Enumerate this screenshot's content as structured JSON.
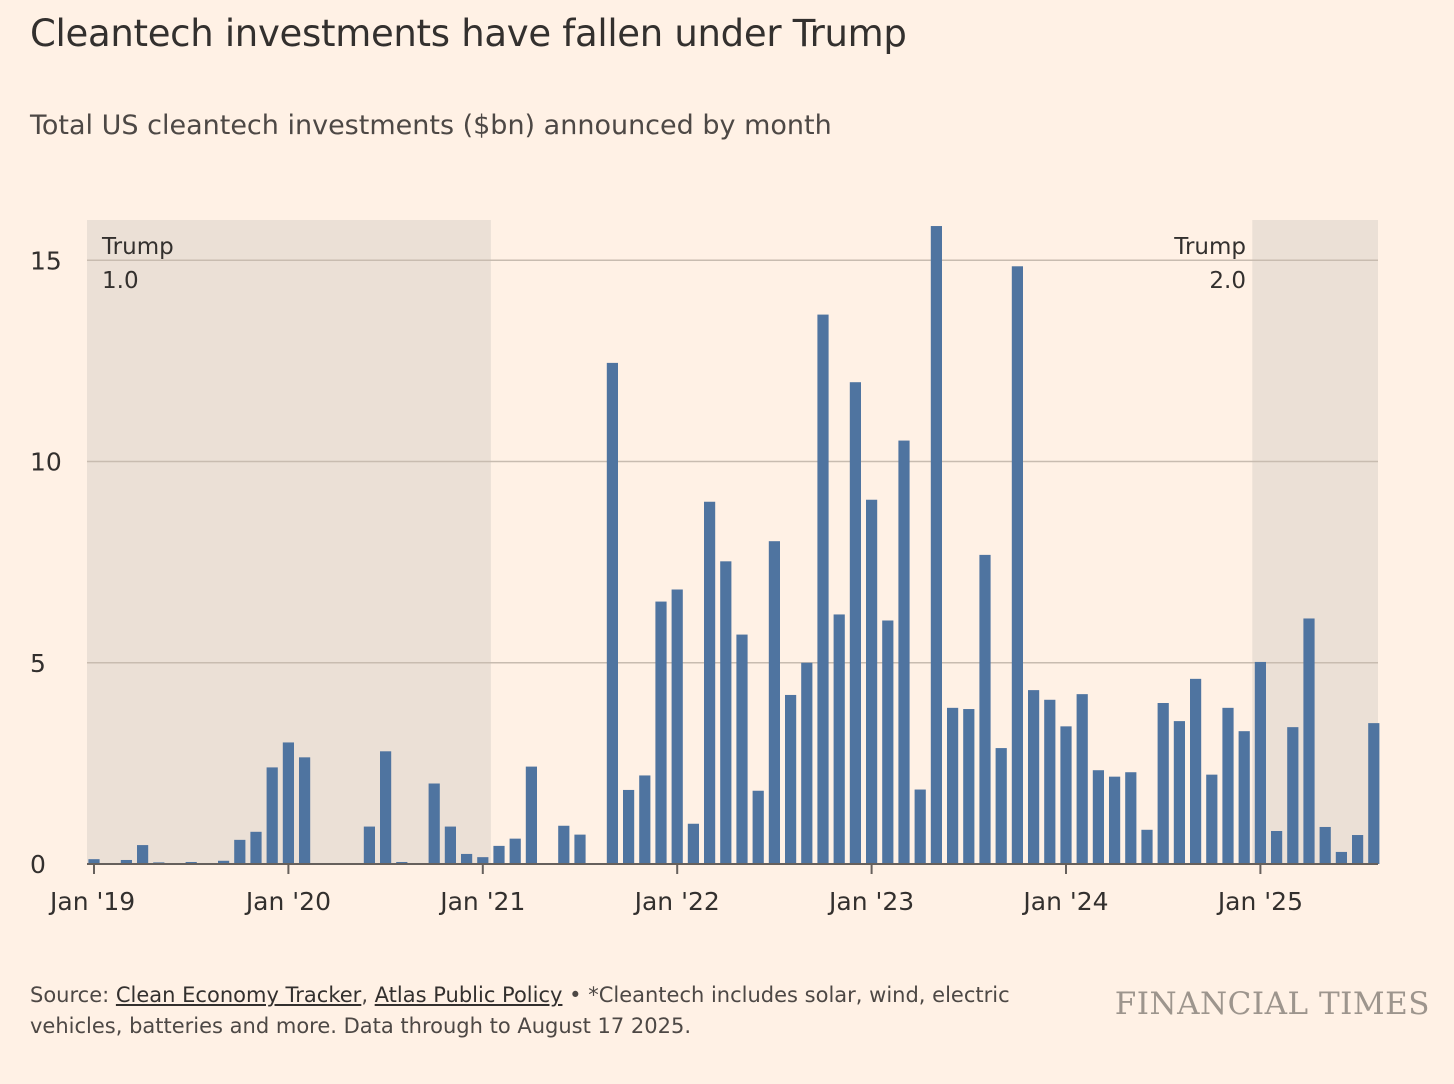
{
  "title": "Cleantech investments have fallen under Trump",
  "subtitle": "Total US cleantech investments ($bn) announced by month",
  "footer": {
    "source_prefix": "Source: ",
    "link1": "Clean Economy Tracker",
    "separator1": ", ",
    "link2": "Atlas Public Policy",
    "note": " • *Cleantech includes solar, wind, electric vehicles, batteries and more. Data through to August 17 2025."
  },
  "brand": "FINANCIAL TIMES",
  "colors": {
    "background": "#FFF1E5",
    "bar": "#4F74A0",
    "shade": "#EBE0D6",
    "grid": "#C8BCB0",
    "text": "#33302E"
  },
  "chart_data": {
    "type": "bar",
    "title": "Cleantech investments have fallen under Trump",
    "subtitle": "Total US cleantech investments ($bn) announced by month",
    "ylim": [
      0,
      16
    ],
    "yticks": [
      0,
      5,
      10,
      15
    ],
    "grid": true,
    "xticks": [
      "Jan '19",
      "Jan '20",
      "Jan '21",
      "Jan '22",
      "Jan '23",
      "Jan '24",
      "Jan '25"
    ],
    "shaded_periods": [
      {
        "label_line1": "Trump",
        "label_line2": "1.0",
        "start": "2019-01",
        "end": "2021-01"
      },
      {
        "label_line1": "Trump",
        "label_line2": "2.0",
        "start": "2025-01",
        "end": "2025-08"
      }
    ],
    "categories": [
      "2019-01",
      "2019-02",
      "2019-03",
      "2019-04",
      "2019-05",
      "2019-06",
      "2019-07",
      "2019-08",
      "2019-09",
      "2019-10",
      "2019-11",
      "2019-12",
      "2020-01",
      "2020-02",
      "2020-03",
      "2020-04",
      "2020-05",
      "2020-06",
      "2020-07",
      "2020-08",
      "2020-09",
      "2020-10",
      "2020-11",
      "2020-12",
      "2021-01",
      "2021-02",
      "2021-03",
      "2021-04",
      "2021-05",
      "2021-06",
      "2021-07",
      "2021-08",
      "2021-09",
      "2021-10",
      "2021-11",
      "2021-12",
      "2022-01",
      "2022-02",
      "2022-03",
      "2022-04",
      "2022-05",
      "2022-06",
      "2022-07",
      "2022-08",
      "2022-09",
      "2022-10",
      "2022-11",
      "2022-12",
      "2023-01",
      "2023-02",
      "2023-03",
      "2023-04",
      "2023-05",
      "2023-06",
      "2023-07",
      "2023-08",
      "2023-09",
      "2023-10",
      "2023-11",
      "2023-12",
      "2024-01",
      "2024-02",
      "2024-03",
      "2024-04",
      "2024-05",
      "2024-06",
      "2024-07",
      "2024-08",
      "2024-09",
      "2024-10",
      "2024-11",
      "2024-12",
      "2025-01",
      "2025-02",
      "2025-03",
      "2025-04",
      "2025-05",
      "2025-06",
      "2025-07",
      "2025-08"
    ],
    "values": [
      0.12,
      0,
      0.1,
      0.47,
      0.04,
      0,
      0.05,
      0,
      0.08,
      0.6,
      0.8,
      2.4,
      3.02,
      2.65,
      0,
      0,
      0,
      0.93,
      2.8,
      0.05,
      0.02,
      2.0,
      0.93,
      0.25,
      0.17,
      0.45,
      0.63,
      2.42,
      0,
      0.95,
      0.73,
      0,
      12.45,
      1.84,
      2.2,
      6.52,
      6.82,
      1.0,
      9.0,
      7.52,
      5.7,
      1.82,
      8.02,
      4.2,
      5.0,
      13.65,
      6.2,
      11.97,
      9.05,
      6.05,
      10.52,
      1.85,
      15.85,
      3.88,
      3.85,
      7.68,
      2.88,
      14.85,
      4.32,
      4.08,
      3.42,
      4.22,
      2.33,
      2.17,
      2.28,
      0.85,
      4.0,
      3.55,
      4.6,
      2.22,
      3.88,
      3.3,
      5.02,
      0.82,
      3.4,
      6.1,
      0.92,
      0.3,
      0.72,
      3.5
    ]
  }
}
